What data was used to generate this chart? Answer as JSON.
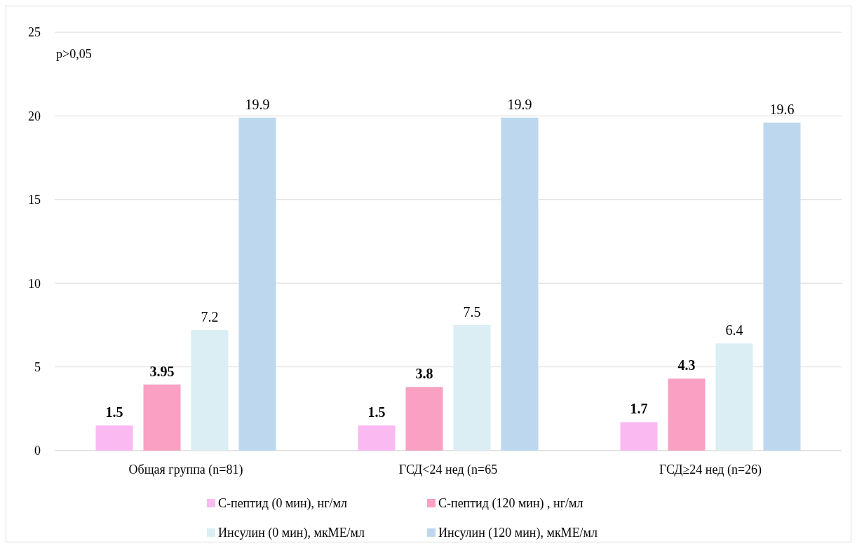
{
  "chart_data": {
    "type": "bar",
    "categories": [
      "Общая группа (n=81)",
      "ГСД<24 нед (n=65",
      "ГСД≥24 нед (n=26)"
    ],
    "series": [
      {
        "name": "С-пептид (0 мин), нг/мл",
        "color": "#fbb9f2",
        "values": [
          1.5,
          1.5,
          1.7
        ]
      },
      {
        "name": "С-пептид (120 мин) , нг/мл",
        "color": "#f9a0c3",
        "values": [
          3.95,
          3.8,
          4.3
        ]
      },
      {
        "name": "Инсулин (0 мин), мкМЕ/мл",
        "color": "#dbeef3",
        "values": [
          7.2,
          7.5,
          6.4
        ]
      },
      {
        "name": "Инсулин (120 мин), мкМЕ/мл",
        "color": "#bdd7ee",
        "values": [
          19.9,
          19.9,
          19.6
        ]
      }
    ],
    "ylim": [
      0,
      25
    ],
    "yticks": [
      0,
      5,
      10,
      15,
      20,
      25
    ],
    "grid": "y",
    "legend": "bottom",
    "data_labels": true,
    "annotations": [
      "p>0,05"
    ]
  }
}
